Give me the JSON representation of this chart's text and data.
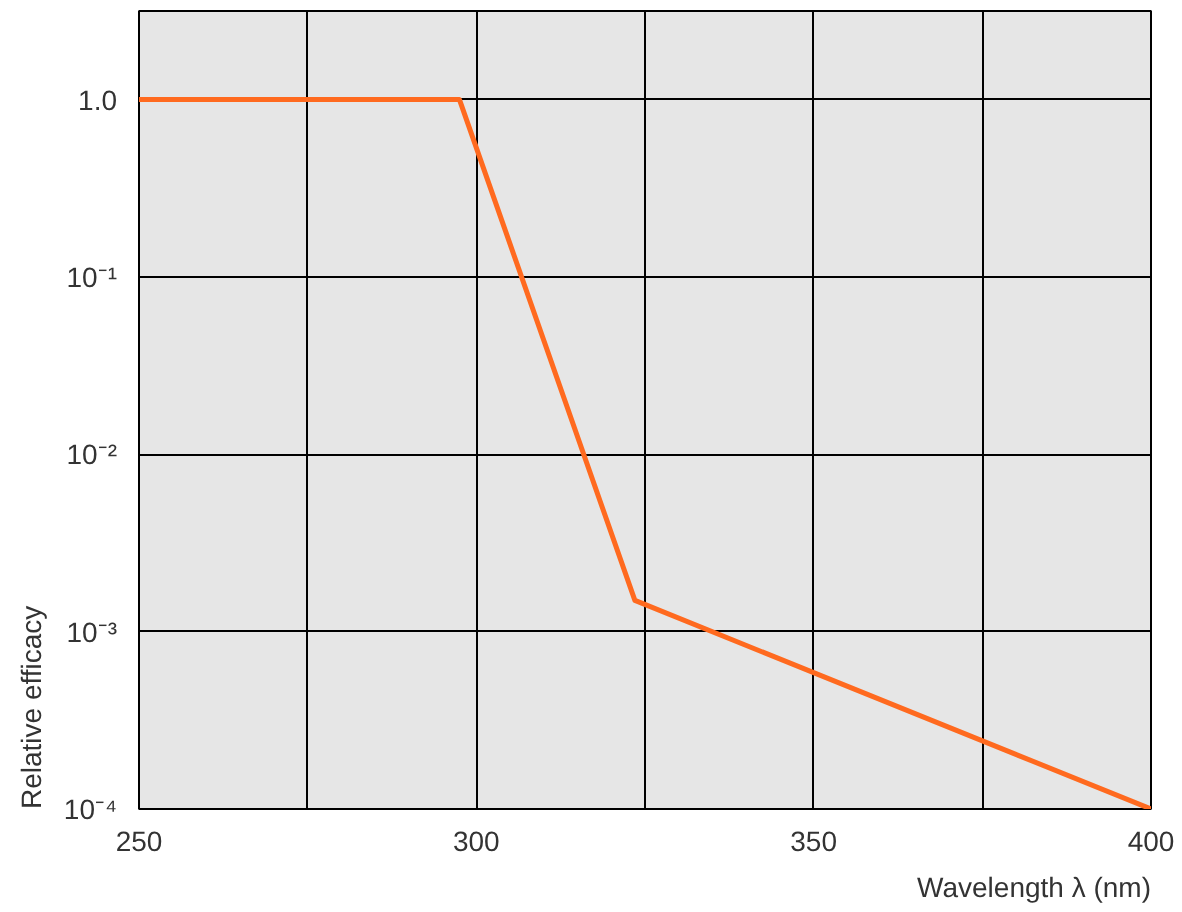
{
  "chart_data": {
    "type": "line",
    "xlabel": "Wavelength λ (nm)",
    "ylabel": "Relative efficacy",
    "x": [
      250,
      297.5,
      323.5,
      400
    ],
    "series": [
      {
        "color": "#ff6a1f",
        "values": [
          1.0,
          1.0,
          0.0015,
          0.0001
        ]
      }
    ],
    "xlim": [
      250,
      400
    ],
    "xticks": [
      250,
      {
        "value": 275,
        "label": null
      },
      300,
      {
        "value": 325,
        "label": null
      },
      350,
      {
        "value": 375,
        "label": null
      },
      400
    ],
    "ylim": [
      0.0001,
      3.16
    ],
    "yticks": [
      {
        "value": 0.0001,
        "label": "10⁻⁴"
      },
      {
        "value": 0.001,
        "label": "10⁻³"
      },
      {
        "value": 0.01,
        "label": "10⁻²"
      },
      {
        "value": 0.1,
        "label": "10⁻¹"
      },
      {
        "value": 1,
        "label": "1.0"
      }
    ],
    "log": "y",
    "grid": true,
    "marker": "none",
    "line_style": "solid"
  }
}
